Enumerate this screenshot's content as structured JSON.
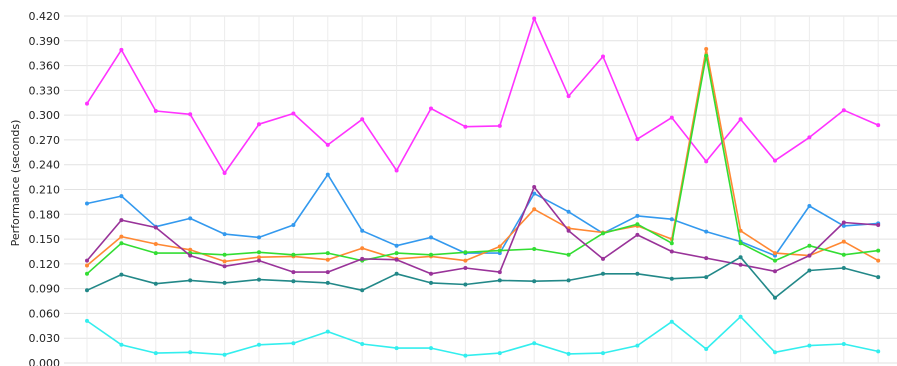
{
  "chart_data": {
    "type": "line",
    "title": "",
    "ylabel": "Performance (seconds)",
    "xlabel": "",
    "ylim": [
      0,
      0.42
    ],
    "yticks": [
      "0.420",
      "0.390",
      "0.360",
      "0.330",
      "0.300",
      "0.270",
      "0.240",
      "0.210",
      "0.180",
      "0.150",
      "0.120",
      "0.090",
      "0.060",
      "0.030",
      "0.000"
    ],
    "grid": true,
    "x": [
      1,
      2,
      3,
      4,
      5,
      6,
      7,
      8,
      9,
      10,
      11,
      12,
      13,
      14,
      15,
      16,
      17,
      18,
      19,
      20,
      21,
      22,
      23,
      24
    ],
    "series": [
      {
        "color": "#ff33ff",
        "values": [
          0.314,
          0.379,
          0.305,
          0.301,
          0.23,
          0.289,
          0.302,
          0.264,
          0.295,
          0.233,
          0.308,
          0.286,
          0.287,
          0.417,
          0.323,
          0.371,
          0.271,
          0.297,
          0.244,
          0.295,
          0.245,
          0.273,
          0.306,
          0.288
        ]
      },
      {
        "color": "#3399ee",
        "values": [
          0.193,
          0.202,
          0.165,
          0.175,
          0.156,
          0.152,
          0.167,
          0.228,
          0.16,
          0.142,
          0.152,
          0.133,
          0.133,
          0.205,
          0.183,
          0.157,
          0.178,
          0.174,
          0.159,
          0.147,
          0.13,
          0.19,
          0.166,
          0.169
        ]
      },
      {
        "color": "#ff8833",
        "values": [
          0.118,
          0.153,
          0.144,
          0.137,
          0.123,
          0.128,
          0.129,
          0.125,
          0.139,
          0.126,
          0.129,
          0.124,
          0.141,
          0.186,
          0.163,
          0.158,
          0.166,
          0.15,
          0.38,
          0.16,
          0.133,
          0.13,
          0.147,
          0.124
        ]
      },
      {
        "color": "#33dd33",
        "values": [
          0.108,
          0.145,
          0.133,
          0.133,
          0.131,
          0.134,
          0.131,
          0.133,
          0.124,
          0.133,
          0.131,
          0.134,
          0.136,
          0.138,
          0.131,
          0.157,
          0.168,
          0.145,
          0.372,
          0.145,
          0.124,
          0.142,
          0.131,
          0.136
        ]
      },
      {
        "color": "#993399",
        "values": [
          0.124,
          0.173,
          0.164,
          0.13,
          0.117,
          0.124,
          0.11,
          0.11,
          0.126,
          0.125,
          0.108,
          0.115,
          0.11,
          0.213,
          0.16,
          0.126,
          0.155,
          0.135,
          0.127,
          0.119,
          0.111,
          0.13,
          0.17,
          0.167
        ]
      },
      {
        "color": "#228888",
        "values": [
          0.088,
          0.107,
          0.096,
          0.1,
          0.097,
          0.101,
          0.099,
          0.097,
          0.088,
          0.108,
          0.097,
          0.095,
          0.1,
          0.099,
          0.1,
          0.108,
          0.108,
          0.102,
          0.104,
          0.128,
          0.079,
          0.112,
          0.115,
          0.104
        ]
      },
      {
        "color": "#33eeee",
        "values": [
          0.051,
          0.022,
          0.012,
          0.013,
          0.01,
          0.022,
          0.024,
          0.038,
          0.023,
          0.018,
          0.018,
          0.009,
          0.012,
          0.024,
          0.011,
          0.012,
          0.021,
          0.05,
          0.017,
          0.056,
          0.013,
          0.021,
          0.023,
          0.014
        ]
      }
    ]
  }
}
